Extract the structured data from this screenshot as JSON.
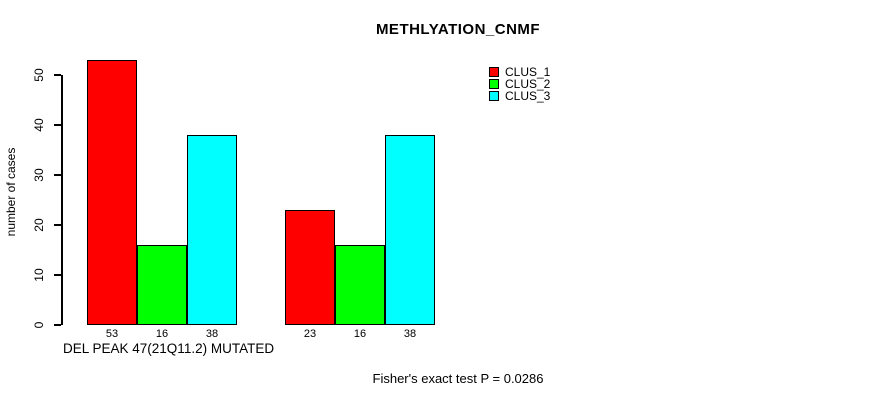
{
  "chart_data": {
    "type": "bar",
    "title": "METHLYATION_CNMF",
    "ylabel": "number of cases",
    "xlabel": "DEL PEAK 47(21Q11.2) MUTATED",
    "annotation": "Fisher's exact test P = 0.0286",
    "ylim": [
      0,
      50
    ],
    "yticks": [
      0,
      10,
      20,
      30,
      40,
      50
    ],
    "grid": false,
    "legend_position": "top-right",
    "background_color": "#FFFFFF",
    "text_color": "#000000",
    "series": [
      {
        "name": "CLUS_1",
        "color": "#FF0000",
        "values": [
          53,
          23
        ]
      },
      {
        "name": "CLUS_2",
        "color": "#00FF00",
        "values": [
          16,
          16
        ]
      },
      {
        "name": "CLUS_3",
        "color": "#00FFFF",
        "values": [
          38,
          38
        ]
      }
    ],
    "bar_labels": [
      [
        "53",
        "16",
        "38"
      ],
      [
        "23",
        "16",
        "38"
      ]
    ],
    "legend": [
      {
        "label": "CLUS_1",
        "color": "#FF0000"
      },
      {
        "label": "CLUS_2",
        "color": "#00FF00"
      },
      {
        "label": "CLUS_3",
        "color": "#00FFFF"
      }
    ]
  }
}
